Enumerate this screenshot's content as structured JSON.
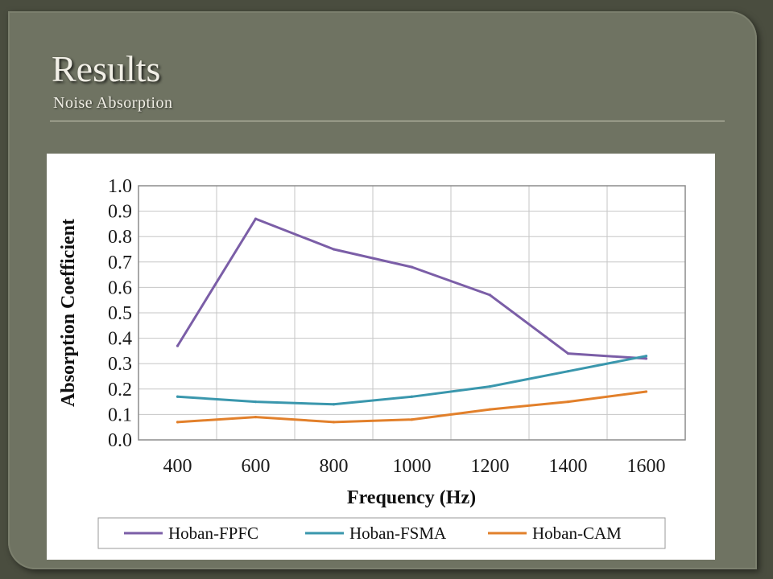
{
  "slide": {
    "title": "Results",
    "subtitle": "Noise Absorption"
  },
  "chart_data": {
    "type": "line",
    "title": "",
    "xlabel": "Frequency (Hz)",
    "ylabel": "Absorption Coefficient",
    "x": [
      400,
      600,
      800,
      1000,
      1200,
      1400,
      1600
    ],
    "x_ticks": [
      "400",
      "600",
      "800",
      "1000",
      "1200",
      "1400",
      "1600"
    ],
    "y_ticks": [
      "0.0",
      "0.1",
      "0.2",
      "0.3",
      "0.4",
      "0.5",
      "0.6",
      "0.7",
      "0.8",
      "0.9",
      "1.0"
    ],
    "xlim": [
      300,
      1700
    ],
    "ylim": [
      0,
      1.0
    ],
    "grid": true,
    "legend_position": "bottom",
    "series": [
      {
        "name": "Hoban-FPFC",
        "color": "#7b5ea7",
        "values": [
          0.37,
          0.87,
          0.75,
          0.68,
          0.57,
          0.34,
          0.32
        ]
      },
      {
        "name": "Hoban-FSMA",
        "color": "#3a97ad",
        "values": [
          0.17,
          0.15,
          0.14,
          0.17,
          0.21,
          0.27,
          0.33
        ]
      },
      {
        "name": "Hoban-CAM",
        "color": "#e2802b",
        "values": [
          0.07,
          0.09,
          0.07,
          0.08,
          0.12,
          0.15,
          0.19
        ]
      }
    ]
  }
}
